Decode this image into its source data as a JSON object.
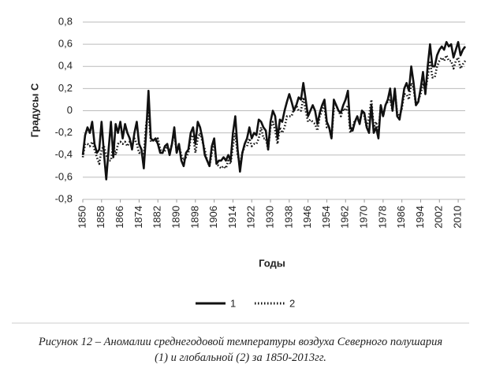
{
  "chart_data": {
    "type": "line",
    "ylabel": "Градусы С",
    "xlabel": "Годы",
    "caption": "Рисунок 12 – Аномалии среднегодовой температуры воздуха Северного полушария (1) и глобальной (2) за 1850-2013гг.",
    "grid": true,
    "xlim": [
      1850,
      2013
    ],
    "xticks": [
      1850,
      1858,
      1866,
      1874,
      1882,
      1890,
      1898,
      1906,
      1914,
      1922,
      1930,
      1938,
      1946,
      1954,
      1962,
      1970,
      1978,
      1986,
      1994,
      2002,
      2010
    ],
    "ylim": [
      -0.8,
      0.8
    ],
    "yticks": [
      {
        "value": -0.8,
        "label": "-0,8"
      },
      {
        "value": -0.6,
        "label": "-0,6"
      },
      {
        "value": -0.4,
        "label": "-0,4"
      },
      {
        "value": -0.2,
        "label": "-0,2"
      },
      0,
      {
        "value": 0.2,
        "label": "0,2"
      },
      {
        "value": 0.4,
        "label": "0,4"
      },
      {
        "value": 0.6,
        "label": "0,6"
      },
      {
        "value": 0.8,
        "label": "0,8"
      }
    ],
    "x": [
      1850,
      1851,
      1852,
      1853,
      1854,
      1855,
      1856,
      1857,
      1858,
      1859,
      1860,
      1861,
      1862,
      1863,
      1864,
      1865,
      1866,
      1867,
      1868,
      1869,
      1870,
      1871,
      1872,
      1873,
      1874,
      1875,
      1876,
      1877,
      1878,
      1879,
      1880,
      1881,
      1882,
      1883,
      1884,
      1885,
      1886,
      1887,
      1888,
      1889,
      1890,
      1891,
      1892,
      1893,
      1894,
      1895,
      1896,
      1897,
      1898,
      1899,
      1900,
      1901,
      1902,
      1903,
      1904,
      1905,
      1906,
      1907,
      1908,
      1909,
      1910,
      1911,
      1912,
      1913,
      1914,
      1915,
      1916,
      1917,
      1918,
      1919,
      1920,
      1921,
      1922,
      1923,
      1924,
      1925,
      1926,
      1927,
      1928,
      1929,
      1930,
      1931,
      1932,
      1933,
      1934,
      1935,
      1936,
      1937,
      1938,
      1939,
      1940,
      1941,
      1942,
      1943,
      1944,
      1945,
      1946,
      1947,
      1948,
      1949,
      1950,
      1951,
      1952,
      1953,
      1954,
      1955,
      1956,
      1957,
      1958,
      1959,
      1960,
      1961,
      1962,
      1963,
      1964,
      1965,
      1966,
      1967,
      1968,
      1969,
      1970,
      1971,
      1972,
      1973,
      1974,
      1975,
      1976,
      1977,
      1978,
      1979,
      1980,
      1981,
      1982,
      1983,
      1984,
      1985,
      1986,
      1987,
      1988,
      1989,
      1990,
      1991,
      1992,
      1993,
      1994,
      1995,
      1996,
      1997,
      1998,
      1999,
      2000,
      2001,
      2002,
      2003,
      2004,
      2005,
      2006,
      2007,
      2008,
      2009,
      2010,
      2011,
      2012,
      2013
    ],
    "series": [
      {
        "name": "1",
        "color": "#111111",
        "dash": "solid",
        "values": [
          -0.4,
          -0.22,
          -0.15,
          -0.2,
          -0.1,
          -0.3,
          -0.38,
          -0.35,
          -0.1,
          -0.38,
          -0.62,
          -0.35,
          -0.1,
          -0.42,
          -0.12,
          -0.2,
          -0.1,
          -0.25,
          -0.12,
          -0.2,
          -0.25,
          -0.35,
          -0.2,
          -0.1,
          -0.3,
          -0.35,
          -0.52,
          -0.2,
          0.18,
          -0.25,
          -0.27,
          -0.25,
          -0.3,
          -0.38,
          -0.38,
          -0.32,
          -0.3,
          -0.4,
          -0.3,
          -0.15,
          -0.38,
          -0.3,
          -0.45,
          -0.5,
          -0.38,
          -0.35,
          -0.2,
          -0.15,
          -0.3,
          -0.1,
          -0.15,
          -0.25,
          -0.4,
          -0.45,
          -0.5,
          -0.32,
          -0.25,
          -0.48,
          -0.45,
          -0.45,
          -0.42,
          -0.45,
          -0.4,
          -0.45,
          -0.2,
          -0.05,
          -0.35,
          -0.55,
          -0.38,
          -0.3,
          -0.25,
          -0.15,
          -0.25,
          -0.2,
          -0.22,
          -0.08,
          -0.1,
          -0.15,
          -0.18,
          -0.35,
          -0.1,
          0.0,
          -0.05,
          -0.25,
          -0.08,
          -0.1,
          0.0,
          0.08,
          0.15,
          0.08,
          0.0,
          0.05,
          0.12,
          0.1,
          0.25,
          0.1,
          -0.05,
          0.0,
          0.05,
          0.0,
          -0.12,
          -0.02,
          0.05,
          0.1,
          -0.1,
          -0.15,
          -0.25,
          0.1,
          0.05,
          0.0,
          -0.02,
          0.05,
          0.1,
          0.18,
          -0.15,
          -0.18,
          -0.1,
          -0.05,
          -0.12,
          0.0,
          -0.02,
          -0.15,
          -0.2,
          0.05,
          -0.2,
          -0.15,
          -0.25,
          0.05,
          -0.05,
          0.05,
          0.1,
          0.2,
          0.0,
          0.2,
          -0.05,
          -0.08,
          0.05,
          0.2,
          0.25,
          0.18,
          0.4,
          0.25,
          0.05,
          0.08,
          0.2,
          0.35,
          0.15,
          0.4,
          0.6,
          0.4,
          0.4,
          0.5,
          0.55,
          0.58,
          0.55,
          0.62,
          0.58,
          0.6,
          0.48,
          0.55,
          0.62,
          0.5,
          0.55,
          0.58
        ]
      },
      {
        "name": "2",
        "color": "#111111",
        "dash": "dotted",
        "values": [
          -0.42,
          -0.3,
          -0.3,
          -0.32,
          -0.28,
          -0.35,
          -0.42,
          -0.48,
          -0.35,
          -0.32,
          -0.4,
          -0.45,
          -0.45,
          -0.3,
          -0.4,
          -0.3,
          -0.28,
          -0.3,
          -0.28,
          -0.32,
          -0.28,
          -0.3,
          -0.25,
          -0.3,
          -0.38,
          -0.38,
          -0.4,
          -0.12,
          -0.02,
          -0.28,
          -0.25,
          -0.28,
          -0.25,
          -0.35,
          -0.38,
          -0.36,
          -0.32,
          -0.38,
          -0.3,
          -0.2,
          -0.38,
          -0.32,
          -0.4,
          -0.45,
          -0.42,
          -0.38,
          -0.25,
          -0.22,
          -0.38,
          -0.25,
          -0.2,
          -0.28,
          -0.35,
          -0.45,
          -0.5,
          -0.38,
          -0.3,
          -0.48,
          -0.5,
          -0.52,
          -0.5,
          -0.52,
          -0.45,
          -0.48,
          -0.32,
          -0.2,
          -0.4,
          -0.48,
          -0.38,
          -0.32,
          -0.32,
          -0.25,
          -0.32,
          -0.3,
          -0.3,
          -0.25,
          -0.15,
          -0.25,
          -0.25,
          -0.35,
          -0.15,
          -0.1,
          -0.18,
          -0.3,
          -0.15,
          -0.2,
          -0.15,
          -0.05,
          -0.05,
          -0.05,
          0.02,
          0.05,
          0.0,
          0.0,
          0.12,
          0.0,
          -0.1,
          -0.08,
          -0.1,
          -0.12,
          -0.18,
          -0.05,
          0.0,
          0.05,
          -0.15,
          -0.15,
          -0.25,
          0.02,
          0.05,
          0.0,
          -0.05,
          0.02,
          0.0,
          0.05,
          -0.2,
          -0.15,
          -0.08,
          -0.08,
          -0.1,
          0.0,
          -0.05,
          -0.15,
          -0.05,
          0.1,
          -0.15,
          -0.1,
          -0.2,
          0.05,
          -0.05,
          0.05,
          0.08,
          0.1,
          0.0,
          0.18,
          -0.02,
          -0.05,
          0.02,
          0.15,
          0.15,
          0.1,
          0.25,
          0.2,
          0.05,
          0.1,
          0.15,
          0.25,
          0.18,
          0.3,
          0.45,
          0.3,
          0.3,
          0.4,
          0.45,
          0.48,
          0.45,
          0.5,
          0.45,
          0.45,
          0.38,
          0.45,
          0.48,
          0.38,
          0.42,
          0.45
        ]
      }
    ]
  }
}
